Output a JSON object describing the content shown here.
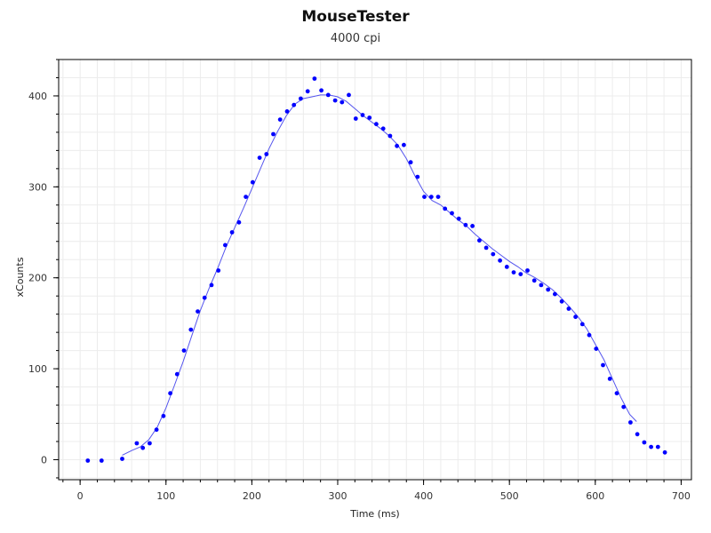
{
  "chart_data": {
    "type": "scatter",
    "title": "MouseTester",
    "subtitle": "4000 cpi",
    "xlabel": "Time (ms)",
    "ylabel": "xCounts",
    "xlim": [
      -25,
      712
    ],
    "ylim": [
      -22,
      440
    ],
    "xticks": [
      0,
      100,
      200,
      300,
      400,
      500,
      600,
      700
    ],
    "yticks": [
      0,
      100,
      200,
      300,
      400
    ],
    "grid": true,
    "colors": {
      "points": "#0000ff",
      "fit_line": "#5555ee",
      "grid": "#ececec",
      "axis": "#000000"
    },
    "series": [
      {
        "kind": "points",
        "x": [
          9,
          25,
          49,
          66,
          73,
          81,
          89,
          97,
          105,
          113,
          121,
          129,
          137,
          145,
          153,
          161,
          169,
          177,
          185,
          193,
          201,
          209,
          217,
          225,
          233,
          241,
          249,
          257,
          265,
          273,
          281,
          289,
          297,
          305,
          313,
          321,
          329,
          337,
          345,
          353,
          361,
          369,
          377,
          385,
          393,
          401,
          409,
          417,
          425,
          433,
          441,
          449,
          457,
          465,
          473,
          481,
          489,
          497,
          505,
          513,
          521,
          529,
          537,
          545,
          553,
          561,
          569,
          577,
          585,
          593,
          601,
          609,
          617,
          625,
          633,
          641,
          649,
          657,
          665,
          673,
          681
        ],
        "y": [
          -1,
          -1,
          1,
          18,
          13,
          18,
          33,
          48,
          73,
          94,
          120,
          143,
          163,
          178,
          192,
          208,
          236,
          250,
          261,
          289,
          305,
          332,
          336,
          358,
          374,
          383,
          390,
          397,
          405,
          419,
          406,
          401,
          395,
          393,
          401,
          375,
          379,
          376,
          369,
          364,
          356,
          345,
          346,
          327,
          311,
          289,
          289,
          289,
          276,
          271,
          265,
          258,
          257,
          241,
          233,
          226,
          219,
          212,
          206,
          204,
          208,
          197,
          192,
          187,
          182,
          174,
          166,
          157,
          149,
          137,
          122,
          104,
          89,
          73,
          58,
          41,
          28,
          19,
          14,
          14,
          8
        ]
      },
      {
        "kind": "fit_line",
        "x": [
          49,
          60,
          70,
          80,
          90,
          100,
          110,
          120,
          130,
          140,
          150,
          160,
          170,
          180,
          190,
          200,
          210,
          220,
          230,
          240,
          250,
          260,
          270,
          280,
          290,
          300,
          310,
          320,
          330,
          340,
          350,
          360,
          370,
          380,
          390,
          400,
          410,
          420,
          430,
          440,
          450,
          460,
          470,
          480,
          490,
          500,
          510,
          520,
          530,
          540,
          550,
          560,
          570,
          580,
          590,
          600,
          610,
          620,
          630,
          640,
          648
        ],
        "y": [
          5,
          10,
          14,
          22,
          36,
          57,
          82,
          108,
          136,
          164,
          188,
          210,
          234,
          255,
          276,
          298,
          320,
          342,
          361,
          378,
          391,
          397,
          399,
          401,
          401,
          399,
          394,
          386,
          378,
          371,
          364,
          356,
          346,
          331,
          312,
          295,
          285,
          280,
          272,
          264,
          257,
          248,
          240,
          232,
          225,
          218,
          212,
          205,
          200,
          194,
          187,
          178,
          168,
          157,
          144,
          127,
          110,
          89,
          68,
          50,
          42
        ]
      }
    ]
  }
}
